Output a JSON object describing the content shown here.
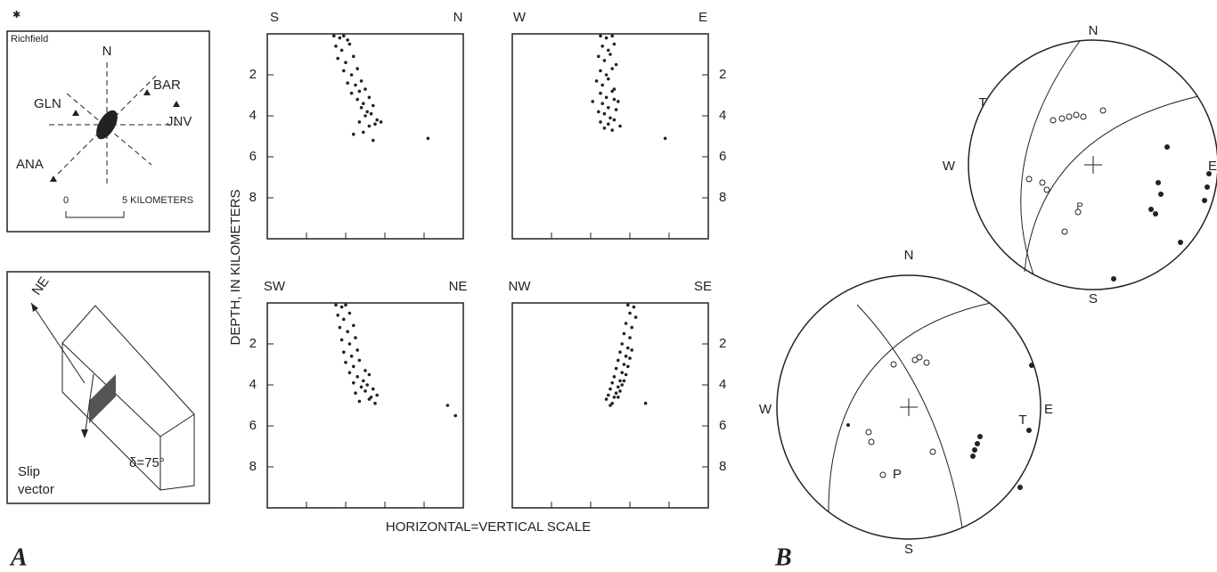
{
  "figure": {
    "panel_a": "A",
    "panel_b": "B",
    "y_axis_label": "DEPTH, IN KILOMETERS",
    "x_axis_label": "HORIZONTAL=VERTICAL SCALE"
  },
  "map": {
    "town": "Richfield",
    "north": "N",
    "stations": [
      "BAR",
      "GLN",
      "JNV",
      "ANA"
    ],
    "scale_start": "0",
    "scale_end": "5 KILOMETERS"
  },
  "block": {
    "direction": "NE",
    "slip_line1": "Slip",
    "slip_line2": "vector",
    "dip": "δ=75°"
  },
  "stereonets": [
    {
      "north": "N",
      "south": "S",
      "west": "W",
      "east": "E",
      "t_axis": "T",
      "p_axis": "P"
    },
    {
      "north": "N",
      "south": "S",
      "west": "W",
      "east": "E",
      "t_axis": "T",
      "p_axis": "P"
    }
  ],
  "chart_data": [
    {
      "type": "scatter",
      "left_label": "S",
      "right_label": "N",
      "yaxis_side": "left",
      "y_inverted": true,
      "xlim": [
        0,
        10
      ],
      "xticks": [
        2,
        4,
        6,
        8
      ],
      "ylim": [
        0,
        10
      ],
      "yticks": [
        2,
        4,
        6,
        8
      ],
      "color": "#222",
      "x": [
        3.4,
        3.7,
        3.9,
        4.1,
        3.5,
        3.8,
        4.2,
        3.6,
        4.0,
        4.4,
        3.9,
        4.3,
        4.6,
        4.1,
        4.5,
        4.8,
        4.3,
        4.7,
        5.0,
        4.6,
        4.9,
        5.2,
        4.8,
        5.1,
        5.4,
        5.0,
        5.3,
        5.6,
        4.7,
        5.2,
        5.5,
        5.8,
        4.9,
        5.4,
        4.4,
        8.2
      ],
      "values": [
        0.1,
        0.2,
        0.1,
        0.3,
        0.6,
        0.8,
        0.5,
        1.2,
        1.4,
        1.1,
        1.8,
        2.0,
        1.7,
        2.4,
        2.5,
        2.3,
        2.9,
        2.8,
        2.7,
        3.2,
        3.4,
        3.1,
        3.6,
        3.8,
        3.5,
        4.0,
        3.9,
        4.2,
        4.3,
        4.5,
        4.4,
        4.3,
        4.8,
        5.2,
        4.9,
        5.1
      ]
    },
    {
      "type": "scatter",
      "left_label": "W",
      "right_label": "E",
      "yaxis_side": "right",
      "y_inverted": true,
      "xlim": [
        0,
        10
      ],
      "xticks": [
        2,
        4,
        6,
        8
      ],
      "ylim": [
        0,
        10
      ],
      "yticks": [
        2,
        4,
        6,
        8
      ],
      "color": "#222",
      "x": [
        4.5,
        4.8,
        5.1,
        4.6,
        4.9,
        5.2,
        4.4,
        4.7,
        5.0,
        5.3,
        4.5,
        4.8,
        5.1,
        4.3,
        4.6,
        4.9,
        5.2,
        4.5,
        4.8,
        5.1,
        5.4,
        4.6,
        4.9,
        5.2,
        4.4,
        4.7,
        5.0,
        5.3,
        4.5,
        4.9,
        5.2,
        4.1,
        4.7,
        5.1,
        5.5,
        7.8
      ],
      "values": [
        0.1,
        0.2,
        0.1,
        0.6,
        0.8,
        0.5,
        1.1,
        1.3,
        1.0,
        1.5,
        1.8,
        2.0,
        1.7,
        2.3,
        2.5,
        2.2,
        2.7,
        2.9,
        3.1,
        2.8,
        3.3,
        3.4,
        3.6,
        3.2,
        3.8,
        3.9,
        4.1,
        3.7,
        4.3,
        4.4,
        4.2,
        3.3,
        4.6,
        4.7,
        4.5,
        5.1
      ]
    },
    {
      "type": "scatter",
      "left_label": "SW",
      "right_label": "NE",
      "yaxis_side": "left",
      "y_inverted": true,
      "xlim": [
        0,
        10
      ],
      "xticks": [
        2,
        4,
        6,
        8
      ],
      "ylim": [
        0,
        10
      ],
      "yticks": [
        2,
        4,
        6,
        8
      ],
      "color": "#222",
      "x": [
        3.5,
        3.8,
        4.0,
        3.6,
        3.9,
        4.2,
        3.7,
        4.1,
        4.4,
        3.8,
        4.2,
        4.5,
        3.9,
        4.3,
        4.6,
        4.0,
        4.4,
        4.7,
        5.0,
        4.2,
        4.6,
        4.9,
        5.2,
        4.4,
        4.8,
        5.1,
        5.4,
        4.5,
        5.0,
        5.3,
        5.6,
        4.7,
        5.2,
        5.5,
        9.2,
        9.6
      ],
      "values": [
        0.1,
        0.2,
        0.1,
        0.6,
        0.8,
        0.5,
        1.2,
        1.4,
        1.1,
        1.8,
        2.0,
        1.7,
        2.4,
        2.6,
        2.3,
        2.9,
        3.1,
        2.8,
        3.3,
        3.4,
        3.6,
        3.8,
        3.5,
        3.9,
        4.1,
        4.0,
        4.2,
        4.4,
        4.3,
        4.6,
        4.5,
        4.8,
        4.7,
        4.9,
        5.0,
        5.5
      ]
    },
    {
      "type": "scatter",
      "left_label": "NW",
      "right_label": "SE",
      "yaxis_side": "right",
      "y_inverted": true,
      "xlim": [
        0,
        10
      ],
      "xticks": [
        2,
        4,
        6,
        8
      ],
      "ylim": [
        0,
        10
      ],
      "yticks": [
        2,
        4,
        6,
        8
      ],
      "color": "#222",
      "x": [
        5.9,
        6.2,
        6.0,
        6.3,
        5.8,
        6.1,
        5.7,
        6.0,
        5.6,
        5.9,
        5.5,
        5.8,
        6.1,
        5.4,
        5.7,
        6.0,
        5.3,
        5.6,
        5.9,
        5.2,
        5.5,
        5.8,
        5.1,
        5.4,
        5.7,
        5.0,
        5.3,
        5.6,
        4.9,
        5.2,
        5.5,
        4.8,
        5.1,
        5.4,
        5.0,
        6.8
      ],
      "values": [
        0.1,
        0.2,
        0.5,
        0.7,
        1.0,
        1.2,
        1.5,
        1.7,
        2.0,
        2.2,
        2.4,
        2.6,
        2.3,
        2.8,
        3.0,
        2.7,
        3.2,
        3.4,
        3.1,
        3.6,
        3.8,
        3.5,
        3.9,
        4.1,
        3.8,
        4.2,
        4.4,
        4.0,
        4.5,
        4.6,
        4.3,
        4.7,
        4.9,
        4.6,
        5.0,
        4.9
      ]
    }
  ]
}
